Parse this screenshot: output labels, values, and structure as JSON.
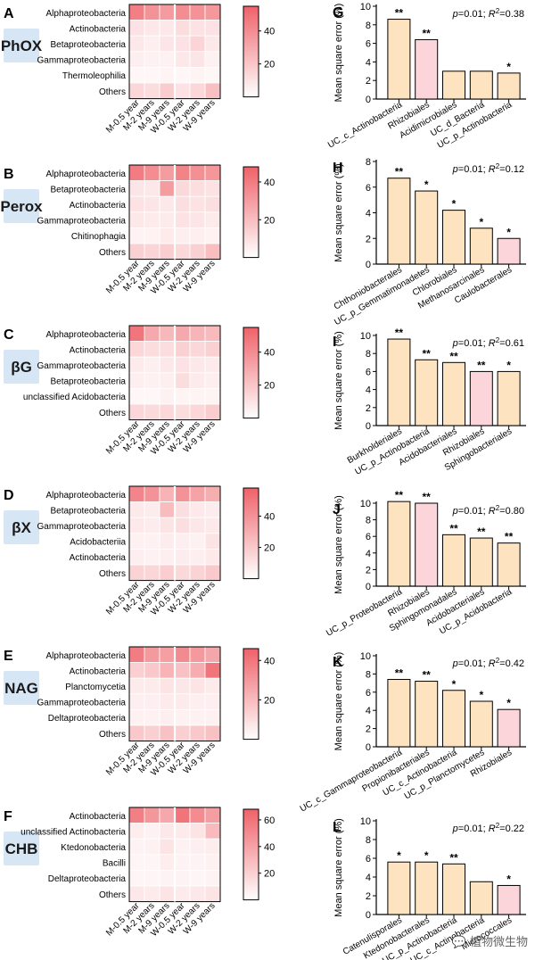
{
  "heatmap_columns": [
    "M-0.5 year",
    "M-2 years",
    "M-9 years",
    "W-0.5 year",
    "W-2 years",
    "W-9 years"
  ],
  "heatmaps": [
    {
      "letter": "A",
      "tag": "PhOX",
      "rows": [
        "Alphaproteobacteria",
        "Actinobacteria",
        "Betaproteobacteria",
        "Gammaproteobacteria",
        "Thermoleophilia",
        "Others"
      ],
      "values": [
        [
          45,
          38,
          35,
          40,
          38,
          36
        ],
        [
          10,
          8,
          8,
          12,
          10,
          10
        ],
        [
          8,
          6,
          9,
          10,
          15,
          8
        ],
        [
          6,
          5,
          5,
          8,
          9,
          5
        ],
        [
          3,
          3,
          4,
          3,
          4,
          3
        ],
        [
          14,
          12,
          18,
          10,
          14,
          22
        ]
      ],
      "scale_max": 55,
      "ticks": [
        20,
        40
      ]
    },
    {
      "letter": "B",
      "tag": "Perox",
      "rows": [
        "Alphaproteobacteria",
        "Betaproteobacteria",
        "Actinobacteria",
        "Gammaproteobacteria",
        "Chitinophagia",
        "Others"
      ],
      "values": [
        [
          40,
          35,
          30,
          38,
          34,
          32
        ],
        [
          8,
          7,
          30,
          12,
          10,
          9
        ],
        [
          9,
          8,
          7,
          10,
          9,
          10
        ],
        [
          7,
          6,
          6,
          9,
          8,
          6
        ],
        [
          4,
          4,
          6,
          5,
          5,
          4
        ],
        [
          14,
          13,
          15,
          12,
          14,
          20
        ]
      ],
      "scale_max": 48,
      "ticks": [
        20,
        40
      ]
    },
    {
      "letter": "C",
      "tag": "βG",
      "rows": [
        "Alphaproteobacteria",
        "Actinobacteria",
        "Gammaproteobacteria",
        "Betaproteobacteria",
        "unclassified Acidobacteria",
        "Others"
      ],
      "values": [
        [
          48,
          30,
          25,
          30,
          26,
          24
        ],
        [
          14,
          12,
          12,
          16,
          14,
          16
        ],
        [
          7,
          6,
          8,
          10,
          8,
          7
        ],
        [
          6,
          5,
          6,
          12,
          7,
          6
        ],
        [
          3,
          3,
          5,
          4,
          4,
          4
        ],
        [
          14,
          13,
          14,
          12,
          14,
          18
        ]
      ],
      "scale_max": 55,
      "ticks": [
        20,
        40
      ]
    },
    {
      "letter": "D",
      "tag": "βX",
      "rows": [
        "Alphaproteobacteria",
        "Betaproteobacteria",
        "Gammaproteobacteria",
        "Acidobacteriia",
        "Actinobacteria",
        "Others"
      ],
      "values": [
        [
          45,
          40,
          28,
          40,
          34,
          30
        ],
        [
          8,
          7,
          25,
          12,
          8,
          7
        ],
        [
          8,
          7,
          10,
          12,
          9,
          8
        ],
        [
          5,
          5,
          7,
          6,
          5,
          10
        ],
        [
          6,
          5,
          6,
          7,
          6,
          8
        ],
        [
          16,
          15,
          18,
          14,
          16,
          20
        ]
      ],
      "scale_max": 58,
      "ticks": [
        20,
        40
      ]
    },
    {
      "letter": "E",
      "tag": "NAG",
      "rows": [
        "Alphaproteobacteria",
        "Actinobacteria",
        "Planctomycetia",
        "Gammaproteobacteria",
        "Deltaproteobacteria",
        "Others"
      ],
      "values": [
        [
          38,
          30,
          28,
          34,
          30,
          26
        ],
        [
          14,
          16,
          22,
          18,
          24,
          40
        ],
        [
          6,
          6,
          8,
          7,
          8,
          6
        ],
        [
          5,
          5,
          6,
          6,
          5,
          5
        ],
        [
          4,
          4,
          5,
          4,
          4,
          4
        ],
        [
          16,
          14,
          18,
          14,
          16,
          18
        ]
      ],
      "scale_max": 46,
      "ticks": [
        20,
        40
      ]
    },
    {
      "letter": "F",
      "tag": "CHB",
      "rows": [
        "Actinobacteria",
        "unclassified Actinobacteria",
        "Ktedonobacteria",
        "Bacilli",
        "Deltaproteobacteria",
        "Others"
      ],
      "values": [
        [
          55,
          45,
          38,
          60,
          50,
          42
        ],
        [
          8,
          6,
          10,
          9,
          12,
          30
        ],
        [
          5,
          6,
          12,
          6,
          7,
          8
        ],
        [
          4,
          4,
          8,
          5,
          5,
          6
        ],
        [
          4,
          4,
          5,
          5,
          4,
          5
        ],
        [
          10,
          9,
          12,
          9,
          10,
          12
        ]
      ],
      "scale_max": 68,
      "ticks": [
        20,
        40,
        60
      ]
    }
  ],
  "chart_data": [
    {
      "type": "bar",
      "letter": "G",
      "ylabel": "Mean square error (%)",
      "ylim": [
        0,
        10
      ],
      "yticks": [
        0,
        2,
        4,
        6,
        8,
        10
      ],
      "stat_p": "p",
      "stat_p_value": "=0.01; ",
      "stat_r": "R",
      "stat_r_sup": "2",
      "stat_r_value": "=0.38",
      "categories": [
        "UC_c_Actinobacteria",
        "Rhizobiales",
        "Acidimicrobiales",
        "UC_d_Bacteria",
        "UC_p_Actinobacteria"
      ],
      "values": [
        8.6,
        6.4,
        3.0,
        3.0,
        2.8
      ],
      "significance": [
        "**",
        "**",
        "",
        "",
        "*"
      ]
    },
    {
      "type": "bar",
      "letter": "H",
      "ylabel": "Mean square error (%)",
      "ylim": [
        0,
        8
      ],
      "yticks": [
        0,
        2,
        4,
        6,
        8
      ],
      "stat_p": "p",
      "stat_p_value": "=0.01; ",
      "stat_r": "R",
      "stat_r_sup": "2",
      "stat_r_value": "=0.12",
      "categories": [
        "Chthoniobacterales",
        "UC_p_Gemmatimonadetes",
        "Chlorobiales",
        "Methanosarcinales",
        "Caulobacterales"
      ],
      "values": [
        6.7,
        5.7,
        4.2,
        2.8,
        2.0
      ],
      "significance": [
        "**",
        "*",
        "*",
        "*",
        "*"
      ]
    },
    {
      "type": "bar",
      "letter": "I",
      "ylabel": "Mean square error (%)",
      "ylim": [
        0,
        10
      ],
      "yticks": [
        0,
        2,
        4,
        6,
        8,
        10
      ],
      "stat_p": "p",
      "stat_p_value": "=0.01; ",
      "stat_r": "R",
      "stat_r_sup": "2",
      "stat_r_value": "=0.61",
      "categories": [
        "Burkholderiales",
        "UC_p_Actinobacteria",
        "Acidobacteriales",
        "Rhizobiales",
        "Sphingobacteriales"
      ],
      "values": [
        9.6,
        7.3,
        7.0,
        6.0,
        6.0
      ],
      "significance": [
        "**",
        "**",
        "**",
        "**",
        "*"
      ]
    },
    {
      "type": "bar",
      "letter": "J",
      "ylabel": "Mean square error (%)",
      "ylim": [
        0,
        10
      ],
      "yticks": [
        0,
        2,
        4,
        6,
        8,
        10
      ],
      "stat_p": "p",
      "stat_p_value": "=0.01; ",
      "stat_r": "R",
      "stat_r_sup": "2",
      "stat_r_value": "=0.80",
      "categories": [
        "UC_p_Proteobacteria",
        "Rhizobiales",
        "Sphingomonadales",
        "Acidobacteriales",
        "UC_p_Acidobacteria"
      ],
      "values": [
        10.2,
        10.0,
        6.2,
        5.8,
        5.2
      ],
      "significance": [
        "**",
        "**",
        "**",
        "**",
        "**"
      ]
    },
    {
      "type": "bar",
      "letter": "K",
      "ylabel": "Mean square error (%)",
      "ylim": [
        0,
        10
      ],
      "yticks": [
        0,
        2,
        4,
        6,
        8,
        10
      ],
      "stat_p": "p",
      "stat_p_value": "=0.01; ",
      "stat_r": "R",
      "stat_r_sup": "2",
      "stat_r_value": "=0.42",
      "categories": [
        "UC_c_Gammaproteobacteria",
        "Propionibacteriales",
        "UC_c_Actinobacteria",
        "UC_p_Planctomycetes",
        "Rhizobiales"
      ],
      "values": [
        7.4,
        7.2,
        6.2,
        5.0,
        4.1
      ],
      "significance": [
        "**",
        "**",
        "*",
        "*",
        "*"
      ]
    },
    {
      "type": "bar",
      "letter": "L",
      "ylabel": "Mean square error (%)",
      "ylim": [
        0,
        10
      ],
      "yticks": [
        0,
        2,
        4,
        6,
        8,
        10
      ],
      "stat_p": "p",
      "stat_p_value": "=0.01; ",
      "stat_r": "R",
      "stat_r_sup": "2",
      "stat_r_value": "=0.22",
      "categories": [
        "Catenulisporales",
        "Ktedonobacterales",
        "UC_p_Actinobacteria",
        "UC_c_Actinobacteria",
        "Micrococcales"
      ],
      "values": [
        5.6,
        5.6,
        5.4,
        3.5,
        3.1
      ],
      "significance": [
        "*",
        "*",
        "**",
        "",
        "*"
      ]
    }
  ],
  "watermark": "植物微生物"
}
